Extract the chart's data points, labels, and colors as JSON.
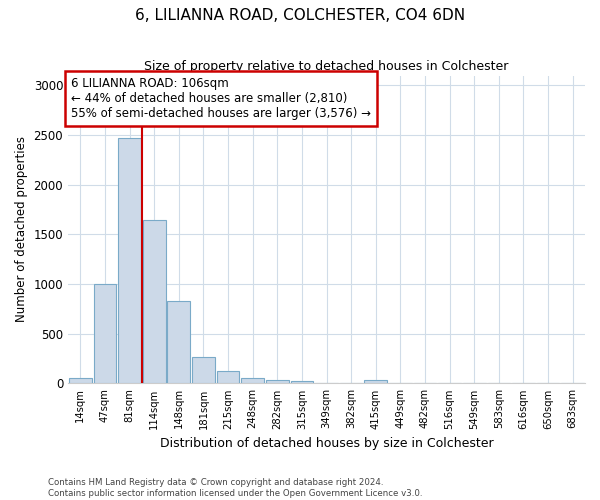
{
  "title": "6, LILIANNA ROAD, COLCHESTER, CO4 6DN",
  "subtitle": "Size of property relative to detached houses in Colchester",
  "xlabel": "Distribution of detached houses by size in Colchester",
  "ylabel": "Number of detached properties",
  "bar_labels": [
    "14sqm",
    "47sqm",
    "81sqm",
    "114sqm",
    "148sqm",
    "181sqm",
    "215sqm",
    "248sqm",
    "282sqm",
    "315sqm",
    "349sqm",
    "382sqm",
    "415sqm",
    "449sqm",
    "482sqm",
    "516sqm",
    "549sqm",
    "583sqm",
    "616sqm",
    "650sqm",
    "683sqm"
  ],
  "bar_values": [
    55,
    1000,
    2470,
    1650,
    830,
    270,
    130,
    55,
    35,
    25,
    0,
    0,
    35,
    0,
    0,
    0,
    0,
    0,
    0,
    0,
    0
  ],
  "bar_color": "#ccd9e8",
  "bar_edge_color": "#7aaac8",
  "vline_x_index": 2.5,
  "annotation_line1": "6 LILIANNA ROAD: 106sqm",
  "annotation_line2": "← 44% of detached houses are smaller (2,810)",
  "annotation_line3": "55% of semi-detached houses are larger (3,576) →",
  "annotation_box_color": "#ffffff",
  "annotation_box_edge": "#cc0000",
  "vline_color": "#cc0000",
  "ylim": [
    0,
    3100
  ],
  "yticks": [
    0,
    500,
    1000,
    1500,
    2000,
    2500,
    3000
  ],
  "footer1": "Contains HM Land Registry data © Crown copyright and database right 2024.",
  "footer2": "Contains public sector information licensed under the Open Government Licence v3.0.",
  "background_color": "#ffffff",
  "plot_bg_color": "#ffffff",
  "grid_color": "#d0dce8"
}
